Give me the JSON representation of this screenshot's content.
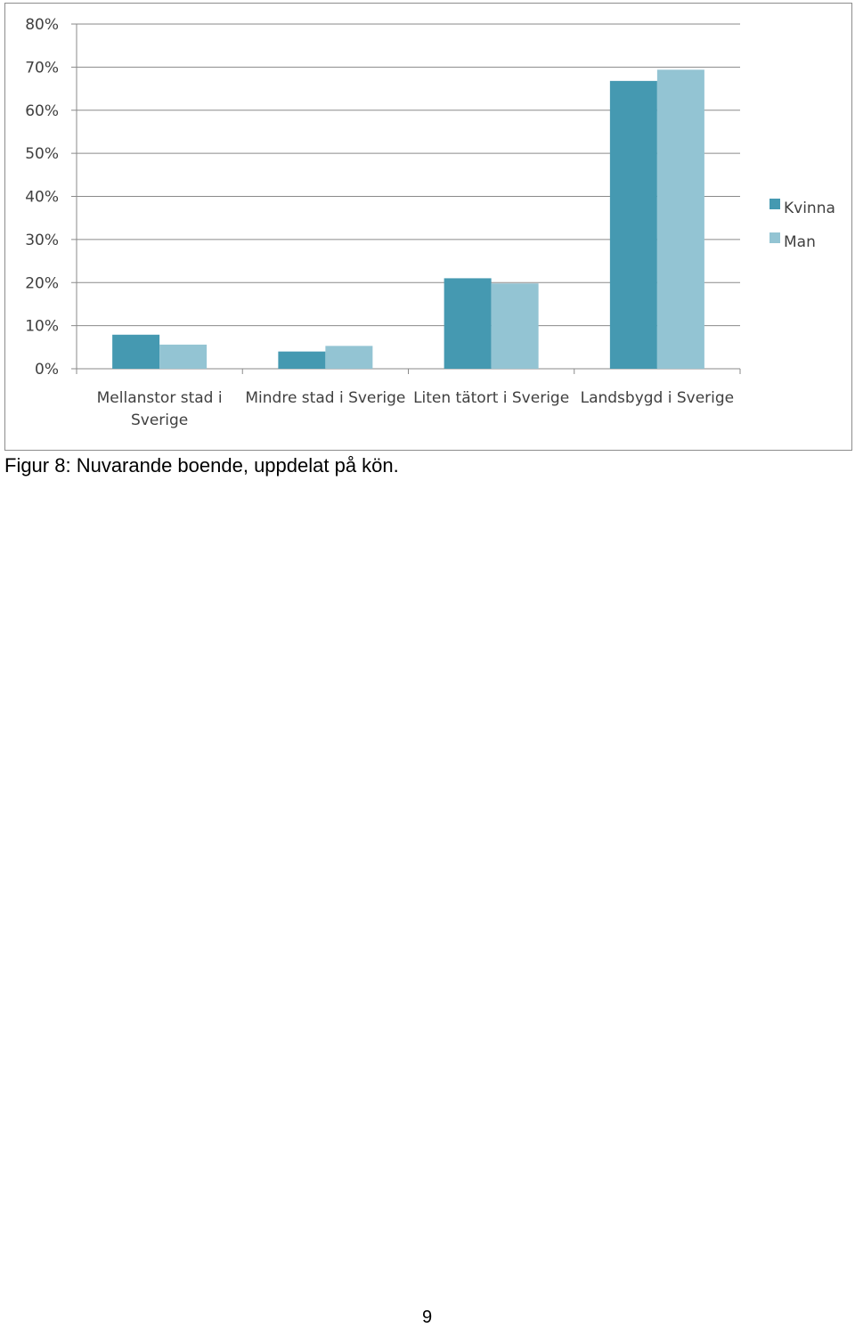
{
  "chart_data": {
    "type": "bar",
    "categories": [
      [
        "Mellanstor stad i",
        "Sverige"
      ],
      [
        "Mindre stad i Sverige"
      ],
      [
        "Liten tätort i Sverige"
      ],
      [
        "Landsbygd i Sverige"
      ]
    ],
    "series": [
      {
        "name": "Kvinna",
        "color": "#4599b1",
        "values": [
          7.9,
          4.0,
          21.0,
          66.8
        ]
      },
      {
        "name": "Man",
        "color": "#93c4d3",
        "values": [
          5.6,
          5.3,
          19.8,
          69.4
        ]
      }
    ],
    "y_ticks": [
      "0%",
      "10%",
      "20%",
      "30%",
      "40%",
      "50%",
      "60%",
      "70%",
      "80%"
    ],
    "ylim": [
      0,
      80
    ],
    "grid": true,
    "legend_position": "right",
    "title": "",
    "xlabel": "",
    "ylabel": ""
  },
  "caption": "Figur 8: Nuvarande boende, uppdelat på kön.",
  "page_number": "9"
}
